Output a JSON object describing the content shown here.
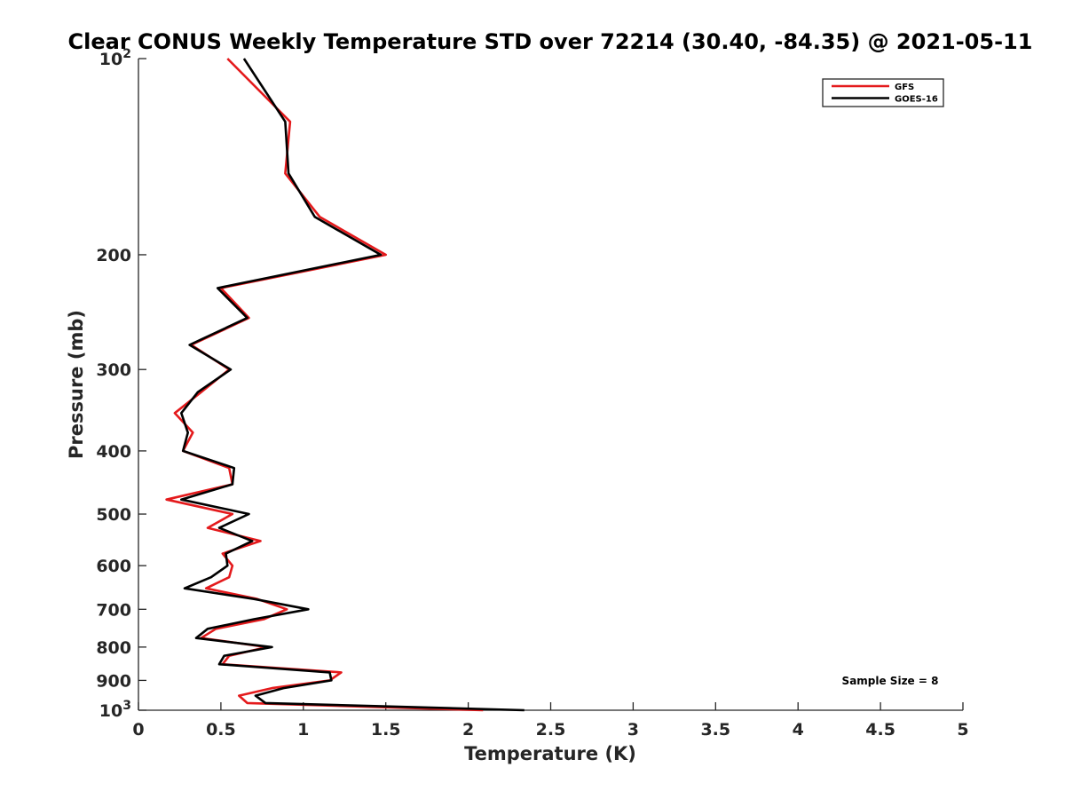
{
  "chart_data": {
    "type": "line",
    "title": "Clear CONUS Weekly Temperature STD over 72214 (30.40, -84.35) @ 2021-05-11",
    "xlabel": "Temperature (K)",
    "ylabel": "Pressure (mb)",
    "xlim": [
      0,
      5
    ],
    "ylim": [
      100,
      1000
    ],
    "yscale": "log",
    "y_direction": "reversed",
    "grid": false,
    "legend_position": "top-right",
    "x_ticks": [
      {
        "value": 0,
        "label": "0"
      },
      {
        "value": 0.5,
        "label": "0.5"
      },
      {
        "value": 1,
        "label": "1"
      },
      {
        "value": 1.5,
        "label": "1.5"
      },
      {
        "value": 2,
        "label": "2"
      },
      {
        "value": 2.5,
        "label": "2.5"
      },
      {
        "value": 3,
        "label": "3"
      },
      {
        "value": 3.5,
        "label": "3.5"
      },
      {
        "value": 4,
        "label": "4"
      },
      {
        "value": 4.5,
        "label": "4.5"
      },
      {
        "value": 5,
        "label": "5"
      }
    ],
    "y_ticks": [
      {
        "value": 100,
        "label": "10",
        "sup": "2"
      },
      {
        "value": 200,
        "label": "200"
      },
      {
        "value": 300,
        "label": "300"
      },
      {
        "value": 400,
        "label": "400"
      },
      {
        "value": 500,
        "label": "500"
      },
      {
        "value": 600,
        "label": "600"
      },
      {
        "value": 700,
        "label": "700"
      },
      {
        "value": 800,
        "label": "800"
      },
      {
        "value": 900,
        "label": "900"
      },
      {
        "value": 1000,
        "label": "10",
        "sup": "3"
      }
    ],
    "series": [
      {
        "name": "GFS",
        "color": "#e41a1c",
        "pressure": [
          100,
          125,
          150,
          175,
          200,
          225,
          250,
          275,
          300,
          325,
          350,
          375,
          400,
          425,
          450,
          475,
          500,
          525,
          550,
          575,
          600,
          625,
          650,
          675,
          700,
          725,
          750,
          775,
          800,
          825,
          850,
          875,
          900,
          925,
          950,
          975,
          1000
        ],
        "values": [
          0.54,
          0.92,
          0.89,
          1.1,
          1.5,
          0.5,
          0.67,
          0.32,
          0.55,
          0.38,
          0.22,
          0.33,
          0.27,
          0.55,
          0.57,
          0.17,
          0.57,
          0.42,
          0.74,
          0.51,
          0.57,
          0.55,
          0.41,
          0.72,
          0.9,
          0.76,
          0.47,
          0.38,
          0.78,
          0.55,
          0.51,
          1.23,
          1.16,
          0.81,
          0.61,
          0.66,
          2.09
        ]
      },
      {
        "name": "GOES-16",
        "color": "#000000",
        "pressure": [
          100,
          125,
          150,
          175,
          200,
          225,
          250,
          275,
          300,
          325,
          350,
          375,
          400,
          425,
          450,
          475,
          500,
          525,
          550,
          575,
          600,
          625,
          650,
          675,
          700,
          725,
          750,
          775,
          800,
          825,
          850,
          875,
          900,
          925,
          950,
          975,
          1000
        ],
        "values": [
          0.64,
          0.89,
          0.91,
          1.07,
          1.47,
          0.48,
          0.66,
          0.31,
          0.56,
          0.36,
          0.26,
          0.3,
          0.27,
          0.58,
          0.57,
          0.26,
          0.67,
          0.49,
          0.69,
          0.53,
          0.54,
          0.44,
          0.28,
          0.7,
          1.03,
          0.7,
          0.42,
          0.35,
          0.81,
          0.52,
          0.49,
          1.16,
          1.17,
          0.88,
          0.71,
          0.77,
          2.34
        ]
      }
    ],
    "annotation": "Sample Size = 8"
  }
}
